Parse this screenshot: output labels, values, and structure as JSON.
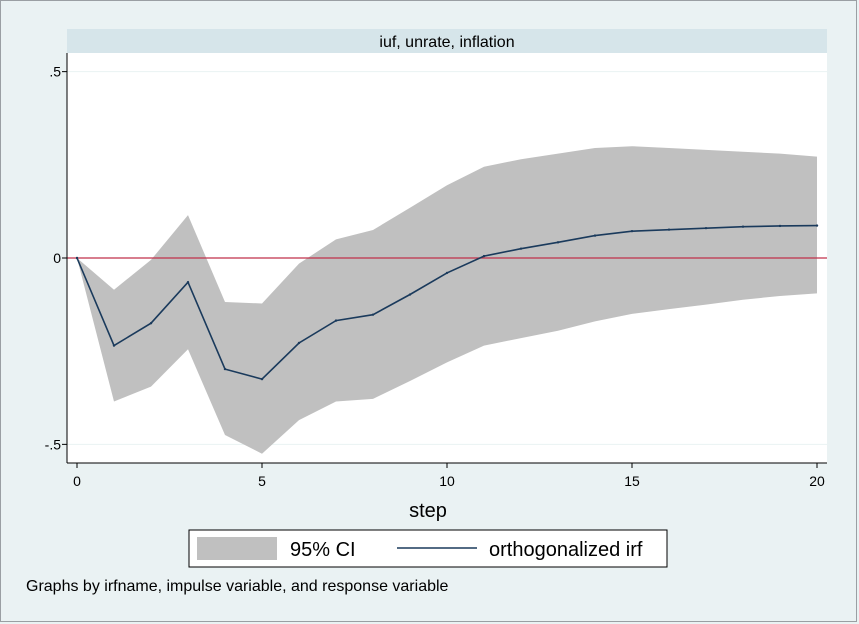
{
  "chart_data": {
    "type": "line",
    "title": "iuf, unrate, inflation",
    "xlabel": "step",
    "ylabel": "",
    "xlim": [
      0,
      20
    ],
    "ylim": [
      -0.55,
      0.55
    ],
    "xticks": [
      0,
      5,
      10,
      15,
      20
    ],
    "yticks": [
      {
        "value": 0.5,
        "label": ".5"
      },
      {
        "value": 0,
        "label": "0"
      },
      {
        "value": -0.5,
        "label": "-.5"
      }
    ],
    "grid": true,
    "reference_line": {
      "y": 0,
      "color": "#c0304a"
    },
    "x": [
      0,
      1,
      2,
      3,
      4,
      5,
      6,
      7,
      8,
      9,
      10,
      11,
      12,
      13,
      14,
      15,
      16,
      17,
      18,
      19,
      20
    ],
    "series": [
      {
        "name": "95% CI",
        "kind": "band",
        "color": "#c0c0c0",
        "upper": [
          0,
          -0.085,
          -0.005,
          0.115,
          -0.118,
          -0.122,
          -0.015,
          0.05,
          0.075,
          0.135,
          0.195,
          0.245,
          0.265,
          0.28,
          0.295,
          0.3,
          0.295,
          0.29,
          0.285,
          0.28,
          0.272
        ],
        "lower": [
          0,
          -0.385,
          -0.345,
          -0.245,
          -0.475,
          -0.525,
          -0.435,
          -0.385,
          -0.378,
          -0.33,
          -0.28,
          -0.235,
          -0.215,
          -0.195,
          -0.17,
          -0.15,
          -0.137,
          -0.125,
          -0.112,
          -0.102,
          -0.095
        ]
      },
      {
        "name": "orthogonalized irf",
        "kind": "line",
        "color": "#1a3a5c",
        "values": [
          0,
          -0.235,
          -0.175,
          -0.065,
          -0.298,
          -0.325,
          -0.228,
          -0.168,
          -0.152,
          -0.098,
          -0.04,
          0.005,
          0.025,
          0.042,
          0.06,
          0.072,
          0.076,
          0.08,
          0.084,
          0.086,
          0.087
        ]
      }
    ],
    "legend": {
      "placement": "bottom"
    }
  },
  "note": "Graphs by irfname, impulse variable, and response variable"
}
